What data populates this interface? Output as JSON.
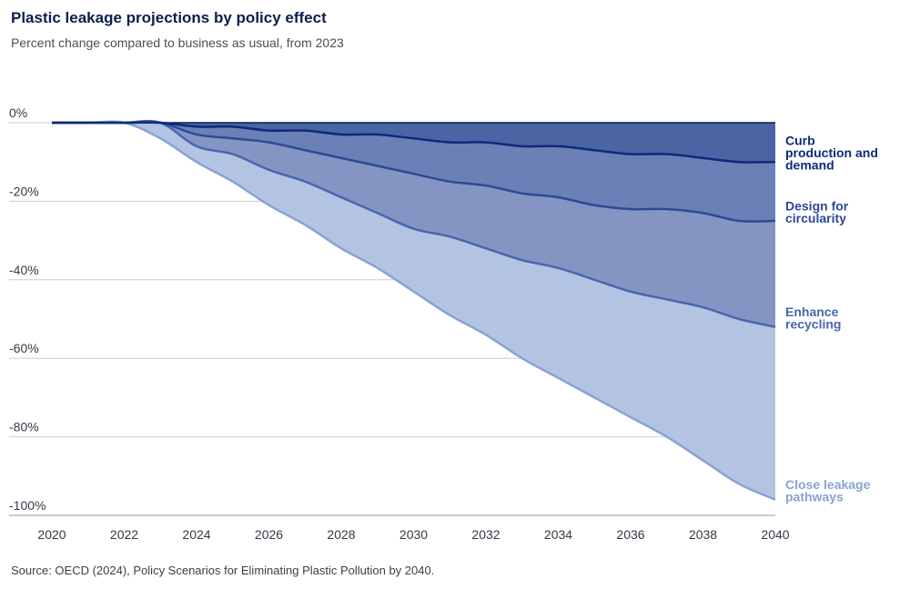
{
  "title": "Plastic leakage projections by policy effect",
  "subtitle": "Percent change compared to business as usual, from 2023",
  "source": "Source: OECD (2024), Policy Scenarios for Eliminating Plastic Pollution by 2040.",
  "chart_data": {
    "type": "area",
    "x": [
      2020,
      2021,
      2022,
      2023,
      2024,
      2025,
      2026,
      2027,
      2028,
      2029,
      2030,
      2031,
      2032,
      2033,
      2034,
      2035,
      2036,
      2037,
      2038,
      2039,
      2040
    ],
    "xlim": [
      2020,
      2040
    ],
    "ylim": [
      -100,
      0
    ],
    "x_ticks": [
      "2020",
      "2022",
      "2024",
      "2026",
      "2028",
      "2030",
      "2032",
      "2034",
      "2036",
      "2038",
      "2040"
    ],
    "y_ticks": [
      "0%",
      "-20%",
      "-40%",
      "-60%",
      "-80%",
      "-100%"
    ],
    "grid": true,
    "series": [
      {
        "name": "Curb production and demand",
        "label_lines": [
          "Curb",
          "production and",
          "demand"
        ],
        "color": "#0f2a7a",
        "fill": "#4a64a4",
        "values": [
          0,
          0,
          0,
          0,
          -1,
          -1,
          -2,
          -2,
          -3,
          -3,
          -4,
          -5,
          -5,
          -6,
          -6,
          -7,
          -8,
          -8,
          -9,
          -10,
          -10
        ]
      },
      {
        "name": "Design for circularity",
        "label_lines": [
          "Design for",
          "circularity"
        ],
        "color": "#2d4a94",
        "fill": "#6b80b6",
        "values": [
          0,
          0,
          0,
          0,
          -3,
          -4,
          -5,
          -7,
          -9,
          -11,
          -13,
          -15,
          -16,
          -18,
          -19,
          -21,
          -22,
          -22,
          -23,
          -25,
          -25
        ]
      },
      {
        "name": "Enhance recycling",
        "label_lines": [
          "Enhance",
          "recycling"
        ],
        "color": "#4a66ac",
        "fill": "#8495c4",
        "values": [
          0,
          0,
          0,
          0,
          -6,
          -8,
          -12,
          -15,
          -19,
          -23,
          -27,
          -29,
          -32,
          -35,
          -37,
          -40,
          -43,
          -45,
          -47,
          -50,
          -52
        ]
      },
      {
        "name": "Close leakage pathways",
        "label_lines": [
          "Close leakage",
          "pathways"
        ],
        "color": "#8aa2d2",
        "fill": "#b3c4e3",
        "values": [
          0,
          0,
          0,
          -4,
          -10,
          -15,
          -21,
          -26,
          -32,
          -37,
          -43,
          -49,
          -54,
          -60,
          -65,
          -70,
          -75,
          -80,
          -86,
          -92,
          -96
        ]
      }
    ]
  }
}
